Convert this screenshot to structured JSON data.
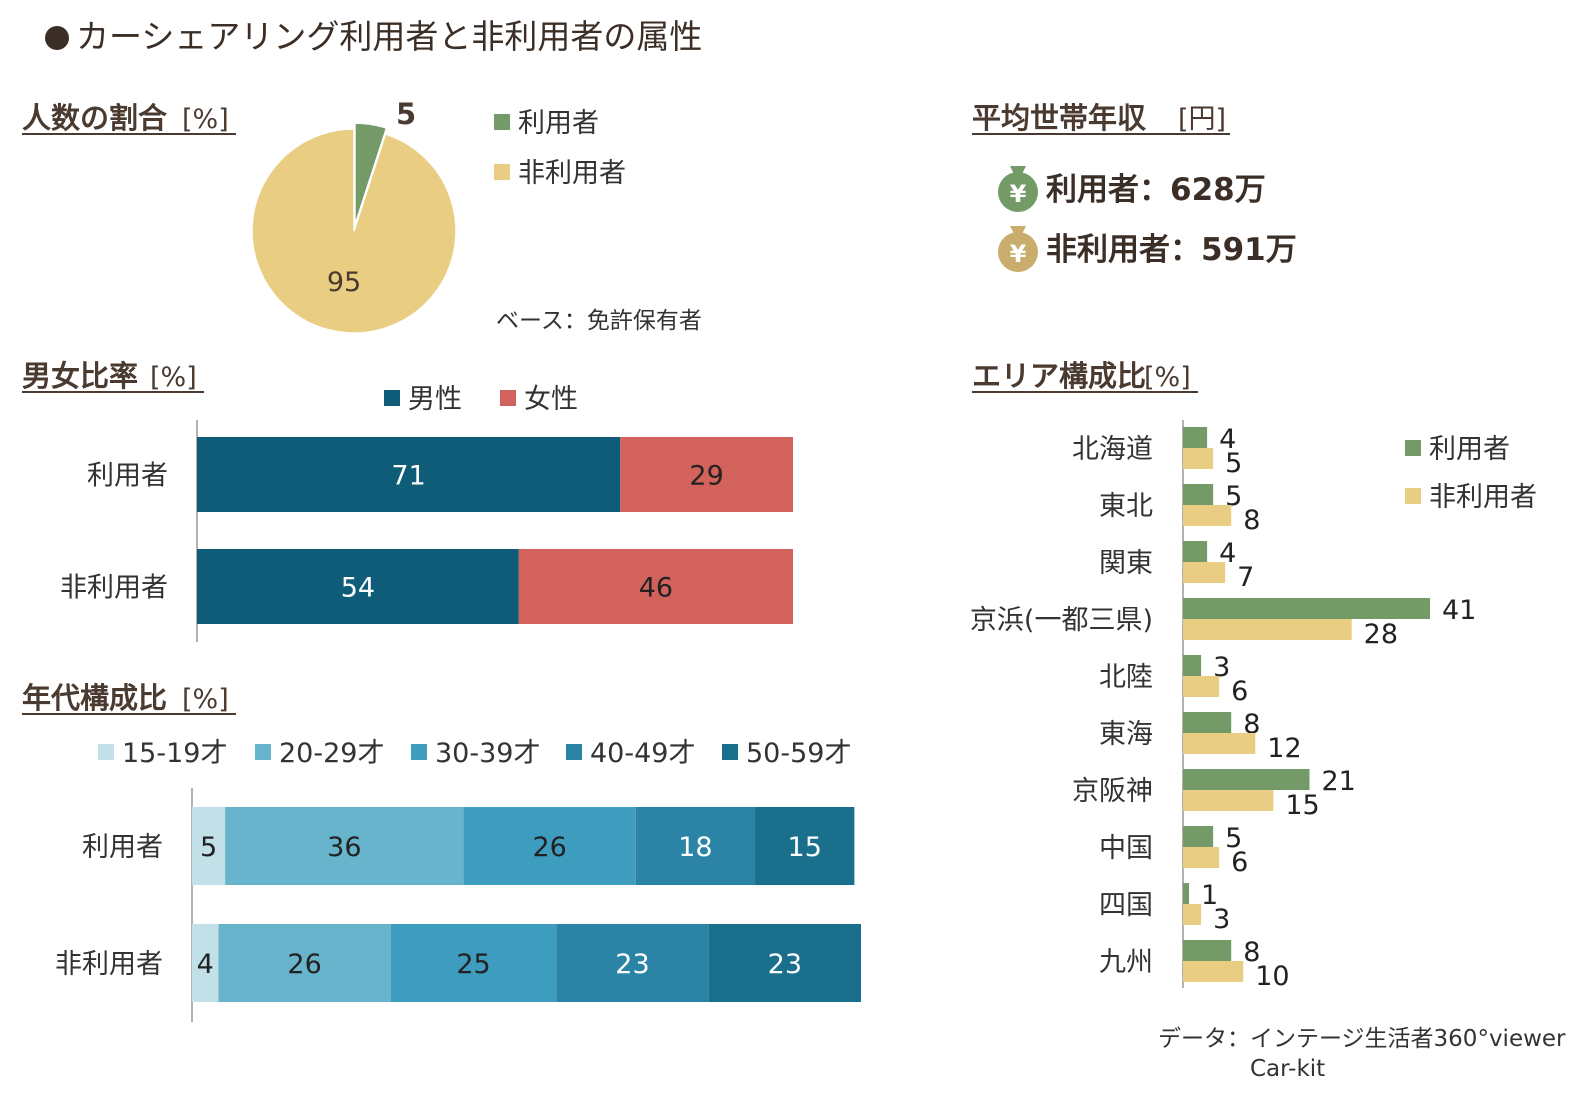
{
  "title": "カーシェアリング利用者と非利用者の属性",
  "colors": {
    "user_green": "#739a67",
    "nonuser_yellow": "#e9cd82",
    "male": "#0e5c78",
    "female": "#d2625b",
    "age": [
      "#c2e0e8",
      "#68b4cd",
      "#3e9dbf",
      "#2b84a6",
      "#1a6f8d"
    ]
  },
  "pie_section": {
    "title": "人数の割合",
    "unit": "[%]",
    "base_note": "ベース：免許保有者"
  },
  "income_section": {
    "title": "平均世帯年収",
    "unit": "[円]",
    "user_line": "利用者：628万",
    "nonuser_line": "非利用者：591万",
    "icon_glyph": "¥"
  },
  "gender_section": {
    "title": "男女比率",
    "unit": "[%]"
  },
  "age_section": {
    "title": "年代構成比",
    "unit": "[%]"
  },
  "area_section": {
    "title": "エリア構成比",
    "unit": "[%]"
  },
  "source_note": [
    "データ：インテージ生活者360°viewer",
    "Car-kit"
  ],
  "chart_data": [
    {
      "id": "share",
      "type": "pie",
      "labels": [
        "利用者",
        "非利用者"
      ],
      "values": [
        5,
        95
      ]
    },
    {
      "id": "gender",
      "type": "bar",
      "stacked": true,
      "orientation": "horizontal",
      "categories": [
        "利用者",
        "非利用者"
      ],
      "series": [
        {
          "name": "男性",
          "values": [
            71,
            54
          ]
        },
        {
          "name": "女性",
          "values": [
            29,
            46
          ]
        }
      ],
      "legend": "top"
    },
    {
      "id": "age",
      "type": "bar",
      "stacked": true,
      "orientation": "horizontal",
      "categories": [
        "利用者",
        "非利用者"
      ],
      "series": [
        {
          "name": "15-19才",
          "values": [
            5,
            4
          ]
        },
        {
          "name": "20-29才",
          "values": [
            36,
            26
          ]
        },
        {
          "name": "30-39才",
          "values": [
            26,
            25
          ]
        },
        {
          "name": "40-49才",
          "values": [
            18,
            23
          ]
        },
        {
          "name": "50-59才",
          "values": [
            15,
            23
          ]
        }
      ],
      "legend": "top"
    },
    {
      "id": "area",
      "type": "bar",
      "orientation": "horizontal",
      "categories": [
        "北海道",
        "東北",
        "関東",
        "京浜(一都三県)",
        "北陸",
        "東海",
        "京阪神",
        "中国",
        "四国",
        "九州"
      ],
      "series": [
        {
          "name": "利用者",
          "values": [
            4,
            5,
            4,
            41,
            3,
            8,
            21,
            5,
            1,
            8
          ]
        },
        {
          "name": "非利用者",
          "values": [
            5,
            8,
            7,
            28,
            6,
            12,
            15,
            6,
            3,
            10
          ]
        }
      ],
      "legend": "right"
    }
  ]
}
